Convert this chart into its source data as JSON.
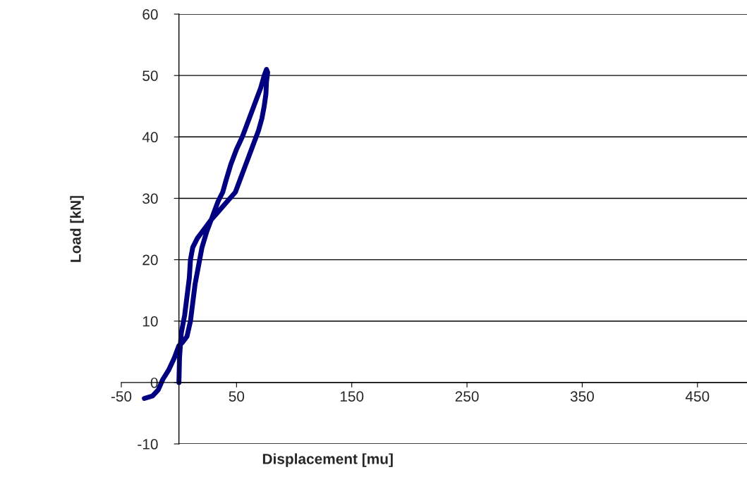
{
  "chart_data": {
    "type": "line",
    "xlabel": "Displacement [mu]",
    "ylabel": "Load [kN]",
    "xlim": [
      -50,
      493
    ],
    "xticks": [
      -50,
      50,
      150,
      250,
      350,
      450
    ],
    "ylim": [
      -10,
      60
    ],
    "yticks": [
      -10,
      0,
      10,
      20,
      30,
      40,
      50,
      60
    ],
    "grid": "y",
    "marker": "none",
    "line_style": "solid",
    "series": [
      {
        "color": "#000080",
        "x": [
          0,
          0.5,
          2,
          5,
          7,
          9,
          10,
          12,
          16,
          22,
          28,
          35,
          42,
          49,
          53,
          57,
          61,
          65,
          69,
          72,
          74,
          75.5,
          76,
          77,
          76,
          74,
          71,
          67,
          63,
          59,
          55,
          50,
          45,
          41,
          38,
          34,
          29,
          24,
          20,
          17,
          14,
          12,
          10,
          7,
          3,
          0,
          -4,
          -9,
          -14,
          -18,
          -23,
          -30
        ],
        "values": [
          0,
          4,
          8,
          11,
          14,
          17,
          20,
          22,
          23.5,
          25,
          26.5,
          28,
          29.5,
          31,
          33,
          35,
          37,
          39,
          41,
          43,
          45,
          47,
          49,
          50.5,
          51,
          50,
          48,
          46,
          44,
          42,
          40,
          38,
          35.5,
          33,
          31,
          29.5,
          27,
          24.5,
          22,
          19,
          16,
          13,
          10,
          7.5,
          6.5,
          6,
          4,
          2,
          0.5,
          -1.2,
          -2.2,
          -2.6
        ]
      }
    ]
  }
}
